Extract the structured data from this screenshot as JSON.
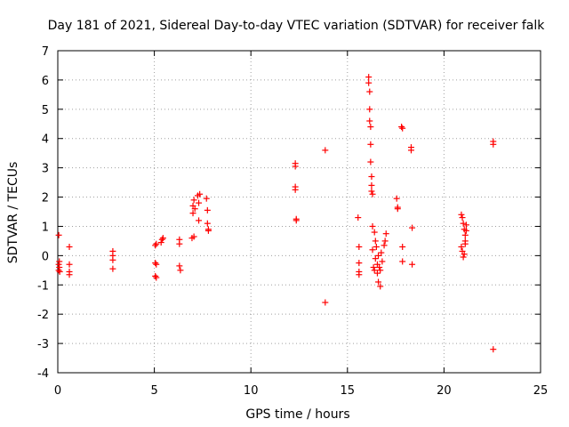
{
  "chart_data": {
    "type": "scatter",
    "title": "Day 181 of 2021, Sidereal Day-to-day VTEC variation (SDTVAR) for receiver falk",
    "xlabel": "GPS time / hours",
    "ylabel": "SDTVAR / TECUs",
    "xlim": [
      0,
      25
    ],
    "ylim": [
      -4,
      7
    ],
    "xticks": [
      0,
      5,
      10,
      15,
      20,
      25
    ],
    "yticks": [
      -4,
      -3,
      -2,
      -1,
      0,
      1,
      2,
      3,
      4,
      5,
      6,
      7
    ],
    "grid": true,
    "marker": "plus",
    "color": "#ff0000",
    "series": [
      {
        "name": "SDTVAR",
        "x": [
          0.05,
          0.05,
          0.05,
          0.08,
          0.08,
          0.1,
          0.6,
          0.6,
          0.6,
          0.6,
          2.85,
          2.85,
          2.85,
          2.85,
          5.05,
          5.05,
          5.05,
          5.1,
          5.1,
          5.1,
          5.35,
          5.4,
          5.45,
          6.3,
          6.3,
          6.3,
          6.35,
          6.95,
          7.0,
          7.0,
          7.05,
          7.05,
          7.1,
          7.25,
          7.3,
          7.3,
          7.35,
          7.7,
          7.75,
          7.75,
          7.8,
          7.8,
          12.3,
          12.3,
          12.3,
          12.3,
          12.35,
          12.35,
          13.85,
          13.85,
          15.55,
          15.6,
          15.6,
          15.6,
          15.6,
          16.1,
          16.1,
          16.15,
          16.15,
          16.15,
          16.2,
          16.2,
          16.2,
          16.25,
          16.25,
          16.25,
          16.3,
          16.3,
          16.3,
          16.35,
          16.4,
          16.4,
          16.45,
          16.45,
          16.5,
          16.55,
          16.55,
          16.6,
          16.6,
          16.65,
          16.7,
          16.7,
          16.75,
          16.8,
          16.9,
          16.95,
          17.0,
          17.55,
          17.6,
          17.6,
          17.8,
          17.85,
          17.85,
          17.85,
          18.3,
          18.3,
          18.35,
          18.35,
          20.9,
          20.9,
          20.95,
          20.95,
          21.0,
          21.0,
          21.05,
          21.05,
          21.1,
          21.1,
          21.1,
          21.15,
          21.15,
          22.55,
          22.55,
          22.55
        ],
        "y": [
          0.7,
          -0.3,
          -0.5,
          -0.2,
          -0.4,
          -0.55,
          0.3,
          -0.3,
          -0.55,
          -0.65,
          0.15,
          0.0,
          -0.15,
          -0.45,
          0.35,
          -0.25,
          -0.7,
          0.4,
          -0.3,
          -0.75,
          0.45,
          0.55,
          0.6,
          0.55,
          0.4,
          -0.35,
          -0.5,
          0.6,
          1.45,
          1.7,
          1.9,
          0.65,
          1.6,
          2.05,
          1.8,
          1.2,
          2.1,
          1.95,
          1.55,
          1.1,
          0.9,
          0.85,
          3.15,
          3.05,
          2.35,
          2.25,
          1.25,
          1.2,
          3.6,
          -1.6,
          1.3,
          0.3,
          -0.25,
          -0.55,
          -0.65,
          6.1,
          5.9,
          5.6,
          5.0,
          4.6,
          4.4,
          3.8,
          3.2,
          2.7,
          2.4,
          2.2,
          2.1,
          1.0,
          0.2,
          -0.4,
          0.8,
          -0.5,
          0.5,
          -0.1,
          0.3,
          -0.6,
          -0.3,
          0.0,
          -0.9,
          -0.4,
          -1.05,
          -0.5,
          0.1,
          -0.2,
          0.35,
          0.5,
          0.75,
          1.95,
          1.65,
          1.6,
          4.4,
          4.35,
          0.3,
          -0.2,
          3.7,
          3.6,
          0.95,
          -0.3,
          1.4,
          0.3,
          1.3,
          0.15,
          1.1,
          -0.05,
          0.9,
          0.05,
          0.7,
          0.5,
          0.4,
          1.05,
          0.85,
          3.9,
          3.8,
          -3.2
        ]
      }
    ]
  }
}
